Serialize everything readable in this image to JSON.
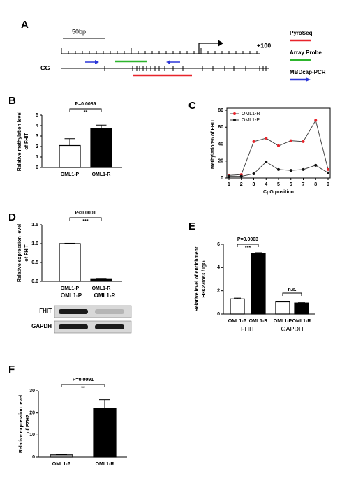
{
  "panel_a": {
    "label": "A",
    "scale_label": "50bp",
    "tss_label": "+100",
    "cg_label": "CG",
    "legend": [
      {
        "name": "PyroSeq",
        "color": "#e8242b"
      },
      {
        "name": "Array Probe",
        "color": "#2db52d"
      },
      {
        "name": "MBDcap-PCR",
        "color": "#2a35d8"
      }
    ]
  },
  "chart_data": [
    {
      "type": "bar",
      "label": "B",
      "ylabel": [
        "Relative methylation level",
        "of FHIT"
      ],
      "categories": [
        "OML1-P",
        "OML1-R"
      ],
      "values": [
        2.1,
        3.75
      ],
      "errors": [
        0.65,
        0.3
      ],
      "colors": [
        "#ffffff",
        "#000000"
      ],
      "ylim": [
        0,
        5
      ],
      "yticks": [
        0,
        1,
        2,
        3,
        4,
        5
      ],
      "annotations": [
        "P=0.0089",
        "**"
      ]
    },
    {
      "type": "line",
      "label": "C",
      "xlabel": "CpG position",
      "ylabel": [
        "Methylation% of FHIT"
      ],
      "x": [
        1,
        2,
        3,
        4,
        5,
        6,
        7,
        8,
        9
      ],
      "xlim": [
        1,
        9
      ],
      "xticks": [
        1,
        2,
        3,
        4,
        5,
        6,
        7,
        8,
        9
      ],
      "ylim": [
        0,
        80
      ],
      "yticks": [
        0,
        20,
        40,
        60,
        80
      ],
      "line_color": "#444444",
      "series": [
        {
          "name": "OML1-R",
          "color": "#e8242b",
          "values": [
            3,
            4,
            43,
            47,
            38,
            44,
            43,
            68,
            10
          ]
        },
        {
          "name": "OML1-P",
          "color": "#111111",
          "values": [
            2,
            2,
            5,
            19,
            10,
            9,
            10,
            15,
            6
          ]
        }
      ]
    },
    {
      "type": "bar",
      "label": "D",
      "ylabel": [
        "Relative expression level",
        "of FHIT"
      ],
      "categories": [
        "OML1-P",
        "OML1-R"
      ],
      "values": [
        1.0,
        0.05
      ],
      "errors": [
        0.01,
        0.01
      ],
      "colors": [
        "#ffffff",
        "#000000"
      ],
      "ylim": [
        0,
        1.5
      ],
      "yticks": [
        {
          "value": 0,
          "label": "0.0"
        },
        0.5,
        {
          "value": 1,
          "label": "1.0"
        },
        1.5
      ],
      "annotations": [
        "P<0.0001",
        "***"
      ],
      "blot": {
        "lanes": [
          "OML1-P",
          "OML1-R"
        ],
        "rows": [
          "FHIT",
          "GAPDH"
        ]
      }
    },
    {
      "type": "grouped-bar",
      "label": "E",
      "ylabel": [
        "Relative level of enrichment",
        "H3K27me3 / IgG"
      ],
      "categories": [
        "OML1-P",
        "OML1-R",
        "OML1-P",
        "OML1-R"
      ],
      "groups": [
        "FHIT",
        "GAPDH"
      ],
      "values": [
        1.3,
        5.2,
        1.05,
        0.95
      ],
      "errors": [
        0.07,
        0.08,
        0.03,
        0.03
      ],
      "colors": [
        "#ffffff",
        "#000000",
        "#ffffff",
        "#000000"
      ],
      "ylim": [
        0,
        6
      ],
      "yticks": [
        0,
        2,
        4,
        6
      ],
      "group_annotations": [
        [
          "P=0.0003",
          "***"
        ],
        [
          "n.s."
        ]
      ]
    },
    {
      "type": "bar",
      "label": "F",
      "ylabel": [
        "Relative expression level",
        "of EZH2"
      ],
      "categories": [
        "OML1-P",
        "OML1-R"
      ],
      "values": [
        1.0,
        22
      ],
      "errors": [
        0.2,
        4
      ],
      "colors": [
        "#ffffff",
        "#000000"
      ],
      "ylim": [
        0,
        30
      ],
      "yticks": [
        0,
        10,
        20,
        30
      ],
      "annotations": [
        "P=0.0091",
        "**"
      ]
    }
  ]
}
